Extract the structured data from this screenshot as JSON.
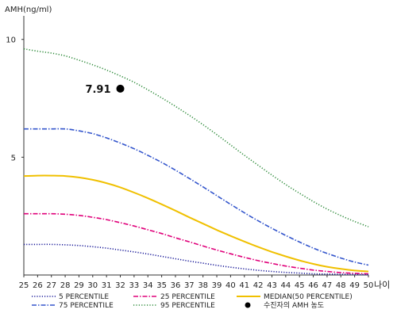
{
  "chart_data": {
    "type": "line",
    "ylabel": "AMH(ng/ml)",
    "xlabel": "나이",
    "x": [
      25,
      26,
      27,
      28,
      29,
      30,
      31,
      32,
      33,
      34,
      35,
      36,
      37,
      38,
      39,
      40,
      41,
      42,
      43,
      44,
      45,
      46,
      47,
      48,
      49,
      50
    ],
    "xlim": [
      25,
      50
    ],
    "ylim": [
      0,
      11
    ],
    "yticks": [
      5,
      10
    ],
    "grid": false,
    "series": [
      {
        "name": "95 PERCENTILE",
        "color": "#2e8b3a",
        "dash": "1.2,2.2",
        "values": [
          9.6,
          9.5,
          9.42,
          9.3,
          9.12,
          8.92,
          8.7,
          8.45,
          8.18,
          7.86,
          7.52,
          7.16,
          6.78,
          6.38,
          5.96,
          5.52,
          5.08,
          4.66,
          4.24,
          3.84,
          3.47,
          3.12,
          2.8,
          2.52,
          2.27,
          2.05
        ]
      },
      {
        "name": "75 PERCENTILE",
        "color": "#3355cc",
        "dash": "6,2,1.5,2",
        "values": [
          6.2,
          6.2,
          6.2,
          6.2,
          6.12,
          6.0,
          5.82,
          5.6,
          5.36,
          5.08,
          4.78,
          4.45,
          4.1,
          3.74,
          3.37,
          3.0,
          2.64,
          2.3,
          1.98,
          1.68,
          1.4,
          1.14,
          0.92,
          0.72,
          0.55,
          0.42
        ]
      },
      {
        "name": "MEDIAN(50 PERCENTILE)",
        "color": "#f0c000",
        "dash": "",
        "values": [
          4.2,
          4.22,
          4.22,
          4.2,
          4.14,
          4.04,
          3.9,
          3.72,
          3.5,
          3.26,
          3.0,
          2.73,
          2.45,
          2.18,
          1.91,
          1.66,
          1.42,
          1.19,
          0.98,
          0.79,
          0.62,
          0.47,
          0.35,
          0.26,
          0.19,
          0.15
        ]
      },
      {
        "name": "25 PERCENTILE",
        "color": "#e0007a",
        "dash": "6,2,1.5,2",
        "values": [
          2.6,
          2.6,
          2.6,
          2.58,
          2.53,
          2.45,
          2.35,
          2.22,
          2.08,
          1.92,
          1.76,
          1.58,
          1.41,
          1.23,
          1.06,
          0.9,
          0.75,
          0.61,
          0.49,
          0.38,
          0.29,
          0.21,
          0.15,
          0.1,
          0.07,
          0.05
        ]
      },
      {
        "name": "5 PERCENTILE",
        "color": "#1a1a99",
        "dash": "1.2,2",
        "values": [
          1.3,
          1.3,
          1.3,
          1.28,
          1.25,
          1.2,
          1.14,
          1.06,
          0.98,
          0.89,
          0.79,
          0.69,
          0.59,
          0.5,
          0.41,
          0.33,
          0.26,
          0.2,
          0.15,
          0.11,
          0.08,
          0.05,
          0.04,
          0.03,
          0.02,
          0.01
        ]
      }
    ],
    "highlight": {
      "x": 32,
      "y": 7.91,
      "label": "7.91",
      "name": "수진자의 AMH 농도",
      "color": "#000000"
    },
    "legend": {
      "placement": "bottom",
      "items": [
        {
          "label": "5 PERCENTILE",
          "color": "#1a1a99",
          "dash": "1.2,2",
          "kind": "line"
        },
        {
          "label": "25 PERCENTILE",
          "color": "#e0007a",
          "dash": "6,2,1.5,2",
          "kind": "line"
        },
        {
          "label": "MEDIAN(50 PERCENTILE)",
          "color": "#f0c000",
          "dash": "",
          "kind": "line"
        },
        {
          "label": "75 PERCENTILE",
          "color": "#3355cc",
          "dash": "6,2,1.5,2",
          "kind": "line"
        },
        {
          "label": "95 PERCENTILE",
          "color": "#2e8b3a",
          "dash": "1.2,2.2",
          "kind": "line"
        },
        {
          "label": "수진자의 AMH 농도",
          "color": "#000000",
          "dash": "",
          "kind": "dot"
        }
      ]
    }
  }
}
